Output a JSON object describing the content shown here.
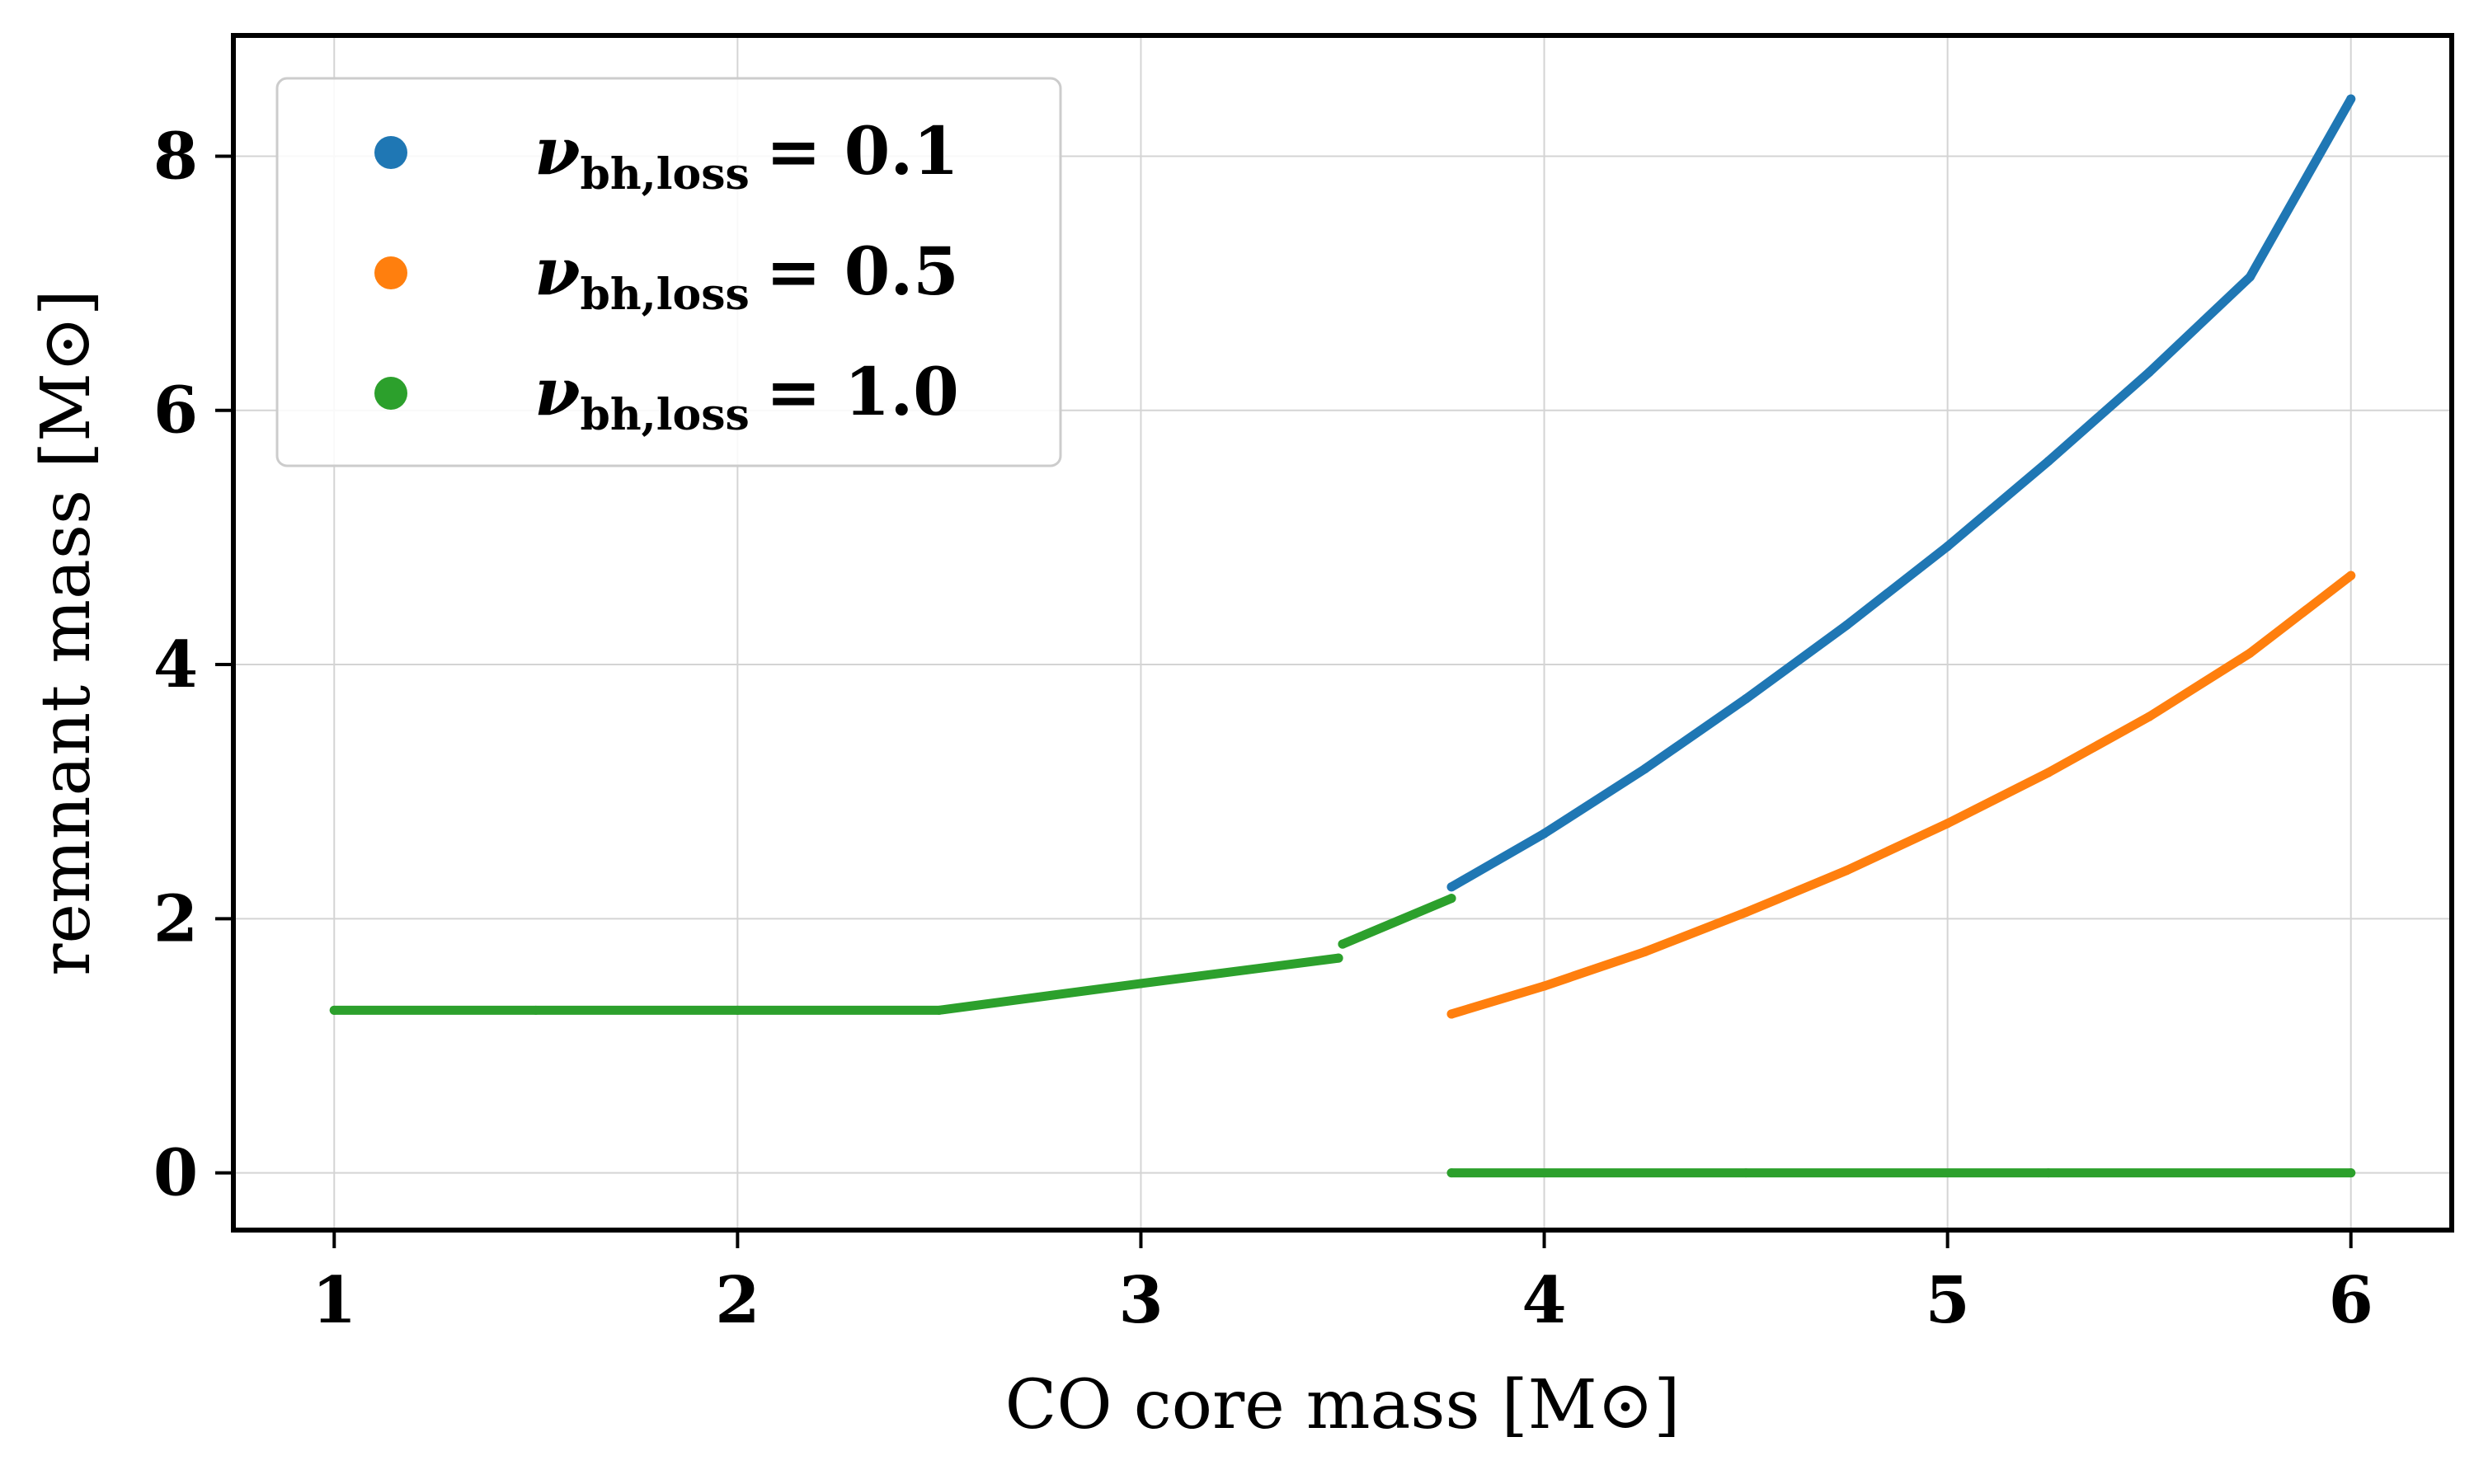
{
  "chart_data": {
    "type": "scatter",
    "xlabel": "CO core mass [M⊙]",
    "ylabel": "remnant mass [M⊙]",
    "xlim": [
      0.75,
      6.25
    ],
    "ylim": [
      -0.45,
      8.95
    ],
    "xticks": [
      1,
      2,
      3,
      4,
      5,
      6
    ],
    "yticks": [
      0,
      2,
      4,
      6,
      8
    ],
    "grid": true,
    "legend_position": "top-left",
    "colors": {
      "blue": "#1f77b4",
      "orange": "#ff7f0e",
      "green": "#2ca02c"
    },
    "series": [
      {
        "legend_symbol": "ν",
        "legend_subscript": "bh,loss",
        "legend_value": "= 0.1",
        "color": "#1f77b4",
        "segments": [
          {
            "x": [
              3.77,
              4.0,
              4.25,
              4.5,
              4.75,
              5.0,
              5.25,
              5.5,
              5.75,
              6.0
            ],
            "y": [
              2.25,
              2.67,
              3.18,
              3.73,
              4.31,
              4.93,
              5.6,
              6.3,
              7.05,
              8.45
            ]
          }
        ]
      },
      {
        "legend_symbol": "ν",
        "legend_subscript": "bh,loss",
        "legend_value": "= 0.5",
        "color": "#ff7f0e",
        "segments": [
          {
            "x": [
              3.77,
              4.0,
              4.25,
              4.5,
              4.75,
              5.0,
              5.25,
              5.5,
              5.75,
              6.0
            ],
            "y": [
              1.25,
              1.47,
              1.74,
              2.05,
              2.38,
              2.75,
              3.15,
              3.59,
              4.09,
              4.7
            ]
          }
        ]
      },
      {
        "legend_symbol": "ν",
        "legend_subscript": "bh,loss",
        "legend_value": "= 1.0",
        "color": "#2ca02c",
        "segments": [
          {
            "x": [
              1.0,
              1.5,
              2.0,
              2.5,
              3.0,
              3.49
            ],
            "y": [
              1.28,
              1.28,
              1.28,
              1.28,
              1.49,
              1.69
            ]
          },
          {
            "x": [
              3.5,
              3.77
            ],
            "y": [
              1.8,
              2.16
            ]
          },
          {
            "x": [
              3.77,
              4.5,
              5.25,
              6.0
            ],
            "y": [
              0.0,
              0.0,
              0.0,
              0.0
            ]
          }
        ]
      }
    ]
  }
}
